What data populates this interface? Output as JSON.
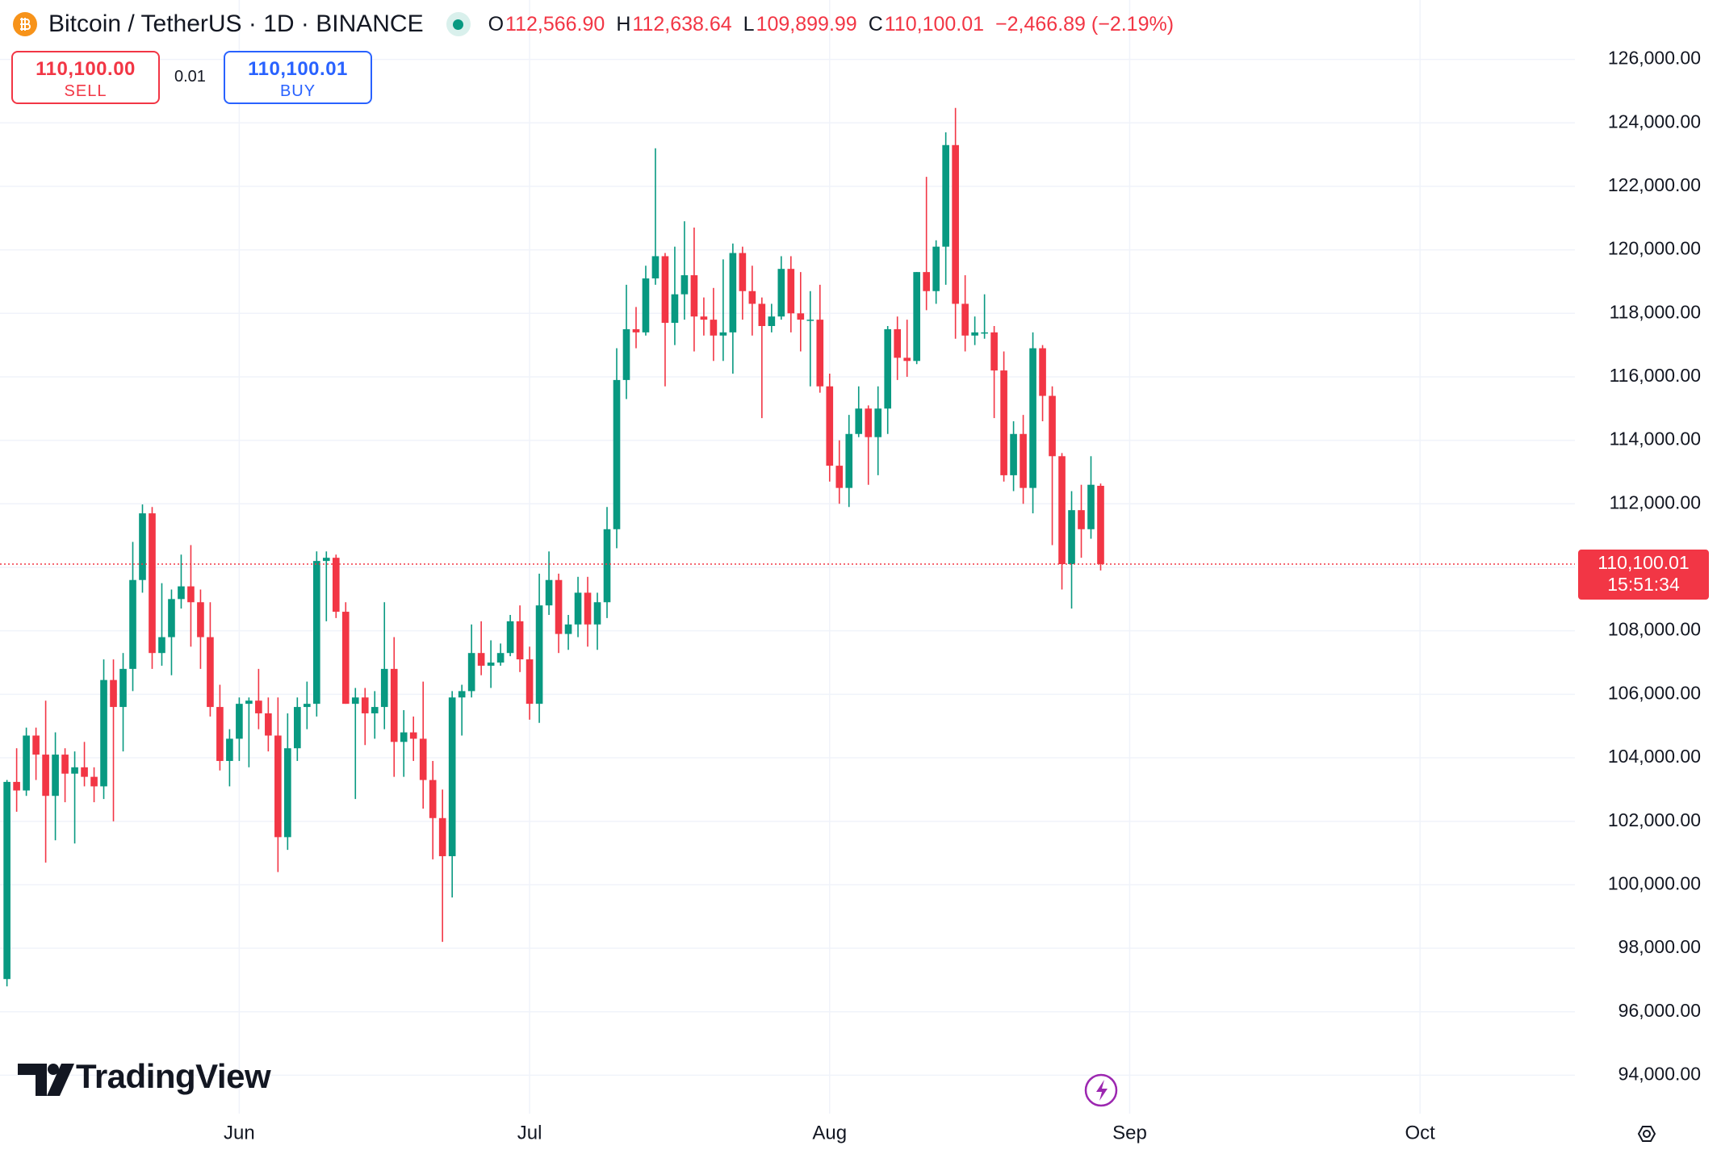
{
  "header": {
    "title": "Bitcoin / TetherUS · 1D · BINANCE",
    "o_label": "O",
    "o": "112,566.90",
    "h_label": "H",
    "h": "112,638.64",
    "l_label": "L",
    "l": "109,899.99",
    "c_label": "C",
    "c": "110,100.01",
    "change": "−2,466.89 (−2.19%)"
  },
  "trade": {
    "sell_price": "110,100.00",
    "sell": "SELL",
    "spread": "0.01",
    "buy_price": "110,100.01",
    "buy": "BUY"
  },
  "brand": "TradingView",
  "chart_data": {
    "type": "candlestick",
    "up_color": "#089981",
    "down_color": "#f23645",
    "grid": true,
    "categories": [
      null,
      null,
      null,
      null,
      null,
      null,
      null,
      null,
      null,
      null,
      null,
      null,
      null,
      null,
      null,
      null,
      null,
      null,
      null,
      null,
      null,
      null,
      null,
      null,
      null,
      null,
      null,
      null,
      null,
      null,
      null,
      null,
      null,
      null,
      null,
      null,
      null,
      null,
      null,
      null,
      null,
      null,
      null,
      null,
      null,
      null,
      null,
      null,
      null,
      null,
      null,
      null,
      null,
      null,
      null,
      null,
      null,
      null,
      null,
      null,
      null,
      null,
      null,
      null,
      null,
      null,
      null,
      null,
      null,
      null,
      null,
      null,
      null,
      null,
      null,
      null,
      null,
      null,
      null,
      null,
      null,
      null,
      null,
      null,
      null,
      null,
      null,
      null,
      null,
      null,
      null,
      null,
      null,
      null,
      null,
      null,
      null,
      null,
      null,
      null,
      null,
      null,
      null,
      null,
      null,
      null,
      null,
      null,
      null,
      null,
      null,
      null,
      null,
      null
    ],
    "open": [
      97030,
      103240,
      102970,
      104700,
      104100,
      102800,
      104100,
      103500,
      103700,
      103400,
      103100,
      106450,
      105600,
      106800,
      109600,
      111700,
      107300,
      107800,
      109000,
      109400,
      108900,
      107800,
      105600,
      103900,
      104600,
      105700,
      105800,
      105400,
      104700,
      101500,
      104300,
      105600,
      105700,
      110200,
      110300,
      108600,
      105700,
      105900,
      105400,
      105600,
      106800,
      104500,
      104800,
      104600,
      103300,
      102100,
      100900,
      105900,
      106100,
      107300,
      106900,
      107000,
      107300,
      108300,
      107100,
      105700,
      108800,
      109600,
      107900,
      108200,
      109200,
      108200,
      108900,
      111200,
      115900,
      117500,
      117400,
      119100,
      119800,
      117700,
      118600,
      119200,
      117900,
      117800,
      117300,
      117400,
      119900,
      118700,
      118300,
      117600,
      117900,
      119400,
      118000,
      117800,
      117800,
      115700,
      113200,
      112500,
      114200,
      115000,
      114100,
      115000,
      117500,
      116600,
      116500,
      119300,
      118700,
      120100,
      123300,
      118300,
      117300,
      117400,
      117400,
      116200,
      112900,
      114200,
      112500,
      116900,
      115400,
      113500,
      110100,
      111800,
      111200,
      112566.9
    ],
    "high": [
      103300,
      104300,
      104950,
      104950,
      105800,
      104800,
      104300,
      104200,
      104500,
      103700,
      107100,
      107100,
      107300,
      110800,
      111980,
      111900,
      109500,
      109300,
      110400,
      110700,
      109300,
      108900,
      106300,
      104900,
      105900,
      105900,
      106800,
      105900,
      105900,
      105400,
      105900,
      106400,
      110500,
      110500,
      110400,
      108900,
      106200,
      106200,
      106100,
      108900,
      107800,
      105500,
      105300,
      106400,
      103900,
      103000,
      106100,
      106300,
      108200,
      108300,
      107700,
      107600,
      108500,
      108800,
      107500,
      109800,
      110500,
      109800,
      108500,
      109700,
      109700,
      109200,
      111900,
      116900,
      118900,
      118200,
      119500,
      123200,
      119900,
      120100,
      120900,
      120700,
      118500,
      118800,
      119700,
      120200,
      120100,
      119500,
      118500,
      118300,
      119800,
      119800,
      119300,
      118700,
      118900,
      116100,
      114000,
      114800,
      115700,
      115100,
      115700,
      117600,
      117900,
      117800,
      119300,
      122300,
      120300,
      123700,
      124470,
      119200,
      117900,
      118600,
      117600,
      116800,
      114600,
      114800,
      117400,
      117000,
      115700,
      113600,
      112400,
      112600,
      113500,
      112638.64
    ],
    "low": [
      96800,
      102300,
      102800,
      103300,
      100700,
      101400,
      102600,
      101300,
      103100,
      102600,
      102700,
      102000,
      104200,
      106100,
      109200,
      106800,
      106900,
      106600,
      108700,
      107500,
      106800,
      105300,
      103600,
      103100,
      103900,
      103700,
      104900,
      104200,
      100400,
      101100,
      103900,
      104900,
      105300,
      108300,
      108400,
      105700,
      102700,
      104400,
      104600,
      104900,
      103400,
      103400,
      103900,
      102400,
      100800,
      98200,
      99600,
      104700,
      105900,
      106600,
      106200,
      106900,
      107200,
      106700,
      105200,
      105100,
      108500,
      107300,
      107400,
      107800,
      107500,
      107400,
      108400,
      110600,
      115300,
      116900,
      117300,
      118900,
      115700,
      117000,
      117800,
      116800,
      117300,
      116500,
      116500,
      116100,
      117800,
      117300,
      114700,
      117400,
      117800,
      117400,
      116800,
      115700,
      115500,
      112700,
      112000,
      111900,
      114100,
      112600,
      112900,
      114200,
      115900,
      116000,
      116400,
      118100,
      118300,
      118900,
      117200,
      116800,
      117000,
      117200,
      114700,
      112700,
      112400,
      112000,
      111700,
      114600,
      110700,
      109300,
      108700,
      110300,
      110900,
      109899.99
    ],
    "close": [
      103240,
      102970,
      104700,
      104100,
      102800,
      104100,
      103500,
      103700,
      103400,
      103100,
      106450,
      105600,
      106800,
      109600,
      111700,
      107300,
      107800,
      109000,
      109400,
      108900,
      107800,
      105600,
      103900,
      104600,
      105700,
      105800,
      105400,
      104700,
      101500,
      104300,
      105600,
      105700,
      110200,
      110300,
      108600,
      105700,
      105900,
      105400,
      105600,
      106800,
      104500,
      104800,
      104600,
      103300,
      102100,
      100900,
      105900,
      106100,
      107300,
      106900,
      107000,
      107300,
      108300,
      107100,
      105700,
      108800,
      109600,
      107900,
      108200,
      109200,
      108200,
      108900,
      111200,
      115900,
      117500,
      117400,
      119100,
      119800,
      117700,
      118600,
      119200,
      117900,
      117800,
      117300,
      117400,
      119900,
      118700,
      118300,
      117600,
      117900,
      119400,
      118000,
      117800,
      117800,
      115700,
      113200,
      112500,
      114200,
      115000,
      114100,
      115000,
      117500,
      116600,
      116500,
      119300,
      118700,
      120100,
      123300,
      118300,
      117300,
      117400,
      117400,
      116200,
      112900,
      114200,
      112500,
      116900,
      115400,
      113500,
      110100,
      111800,
      111200,
      112600,
      110100.01
    ],
    "xlim": [
      -0.72,
      162
    ],
    "xticks": [
      {
        "value": 24,
        "label": "Jun"
      },
      {
        "value": 54,
        "label": "Jul"
      },
      {
        "value": 85,
        "label": "Aug"
      },
      {
        "value": 116,
        "label": "Sep"
      },
      {
        "value": 146,
        "label": "Oct"
      }
    ],
    "ylim": [
      92790,
      127870
    ],
    "yticks": [
      {
        "value": 94000,
        "label": "94,000.00"
      },
      {
        "value": 96000,
        "label": "96,000.00"
      },
      {
        "value": 98000,
        "label": "98,000.00"
      },
      {
        "value": 100000,
        "label": "100,000.00"
      },
      {
        "value": 102000,
        "label": "102,000.00"
      },
      {
        "value": 104000,
        "label": "104,000.00"
      },
      {
        "value": 106000,
        "label": "106,000.00"
      },
      {
        "value": 108000,
        "label": "108,000.00"
      },
      {
        "value": 110000,
        "label": "110,000.00"
      },
      {
        "value": 112000,
        "label": "112,000.00"
      },
      {
        "value": 114000,
        "label": "114,000.00"
      },
      {
        "value": 116000,
        "label": "116,000.00"
      },
      {
        "value": 118000,
        "label": "118,000.00"
      },
      {
        "value": 120000,
        "label": "120,000.00"
      },
      {
        "value": 122000,
        "label": "122,000.00"
      },
      {
        "value": 124000,
        "label": "124,000.00"
      },
      {
        "value": 126000,
        "label": "126,000.00"
      }
    ],
    "price_line": {
      "value": 110100.01,
      "label": "110,100.01",
      "countdown": "15:51:34",
      "color": "#f23645"
    }
  }
}
